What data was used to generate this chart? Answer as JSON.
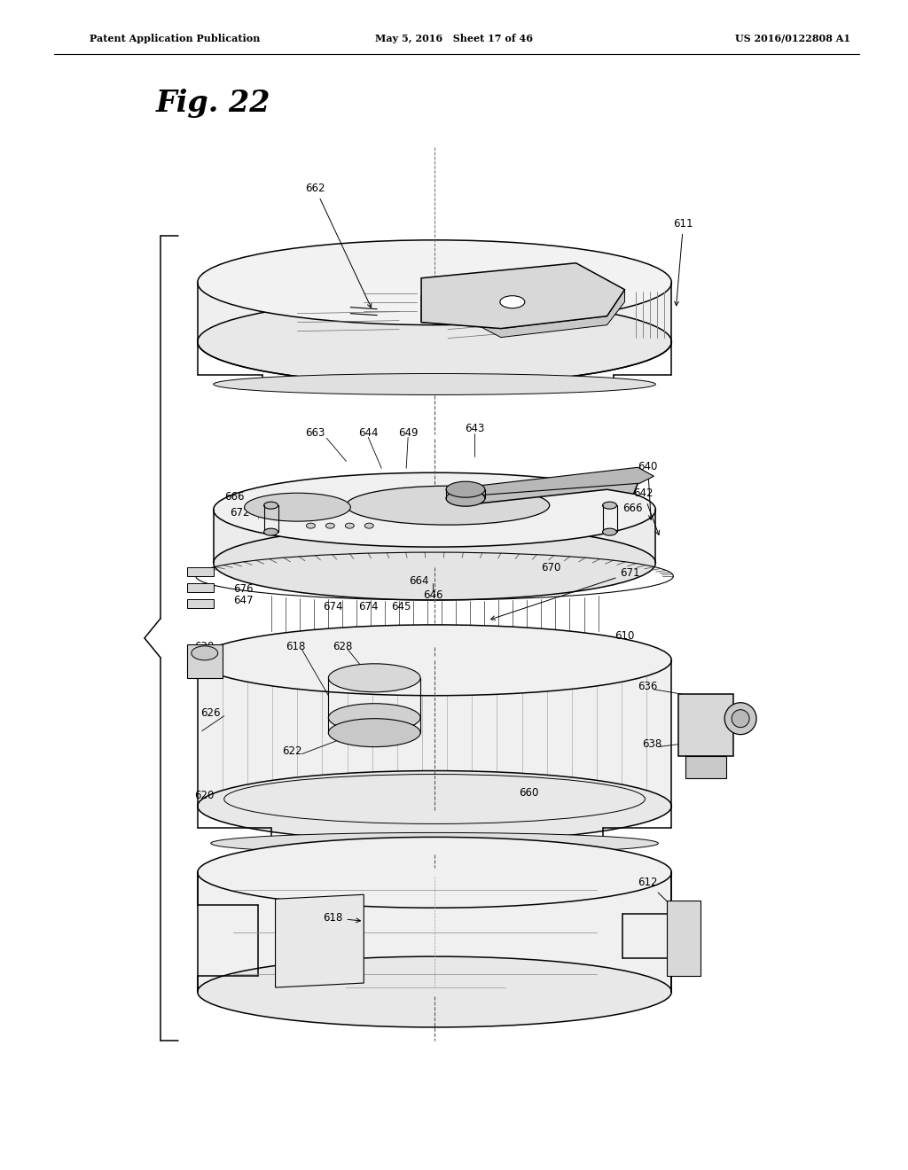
{
  "header_left": "Patent Application Publication",
  "header_mid": "May 5, 2016   Sheet 17 of 46",
  "header_right": "US 2016/0122808 A1",
  "fig_label": "Fig. 22",
  "bg_color": "#ffffff",
  "line_color": "#000000",
  "figsize": [
    10.24,
    13.2
  ],
  "dpi": 100,
  "label_size": 8.5
}
